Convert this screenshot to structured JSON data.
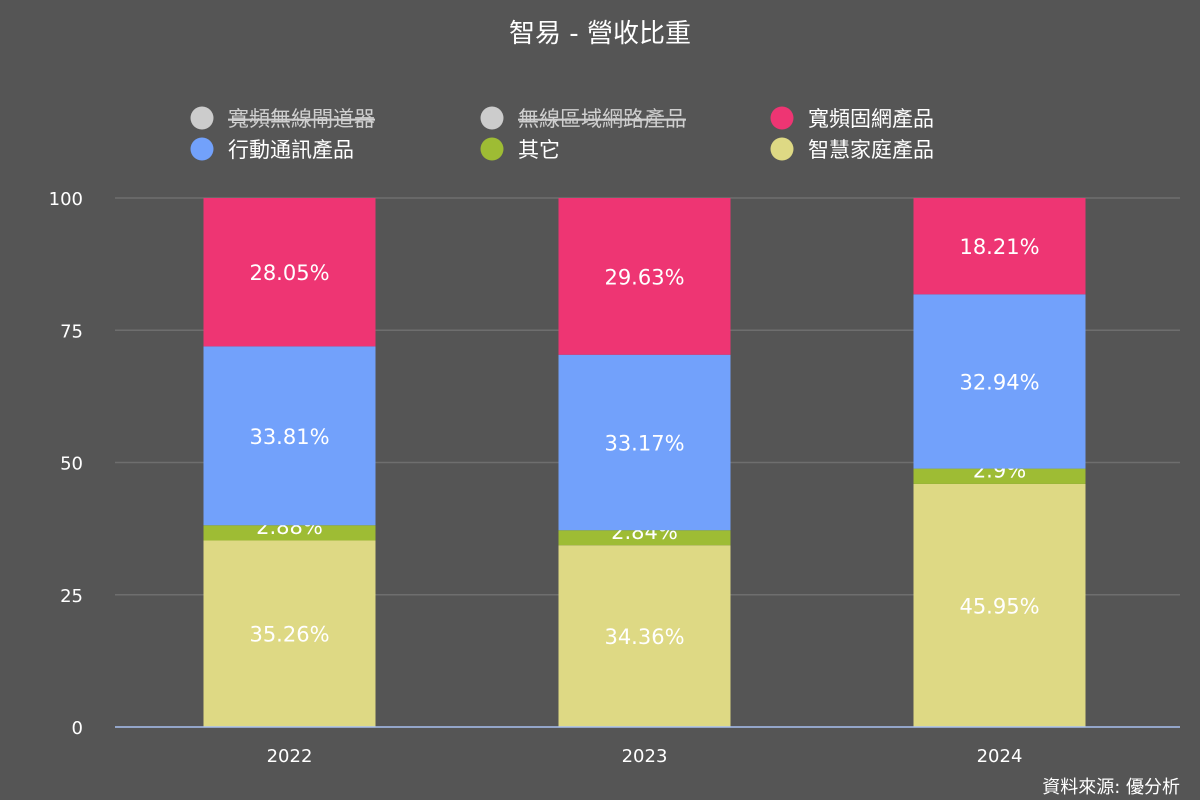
{
  "chart_data": {
    "type": "bar",
    "stacked": true,
    "title": "智易 - 營收比重",
    "categories": [
      "2022",
      "2023",
      "2024"
    ],
    "ylim": [
      0,
      100
    ],
    "yticks": [
      0,
      25,
      50,
      75,
      100
    ],
    "grid": true,
    "legend_position": "top",
    "series": [
      {
        "name": "寬頻無線閘道器",
        "color": "#cccccc",
        "visible": false,
        "values": [
          0,
          0,
          0
        ]
      },
      {
        "name": "無線區域網路產品",
        "color": "#cccccc",
        "visible": false,
        "values": [
          0,
          0,
          0
        ]
      },
      {
        "name": "寬頻固網產品",
        "color": "#ee3573",
        "visible": true,
        "values": [
          28.05,
          29.63,
          18.21
        ]
      },
      {
        "name": "行動通訊產品",
        "color": "#72a1fb",
        "visible": true,
        "values": [
          33.81,
          33.17,
          32.94
        ]
      },
      {
        "name": "其它",
        "color": "#9ebc34",
        "visible": true,
        "values": [
          2.88,
          2.84,
          2.9
        ]
      },
      {
        "name": "智慧家庭產品",
        "color": "#ded984",
        "visible": true,
        "values": [
          35.26,
          34.36,
          45.95
        ]
      }
    ],
    "stack_order_bottom_to_top": [
      "智慧家庭產品",
      "其它",
      "行動通訊產品",
      "寬頻固網產品"
    ]
  },
  "source": "資料來源: 優分析",
  "colors": {
    "background": "#555555",
    "grid": "#6e6e6e",
    "axis": "#a8c0f0"
  }
}
